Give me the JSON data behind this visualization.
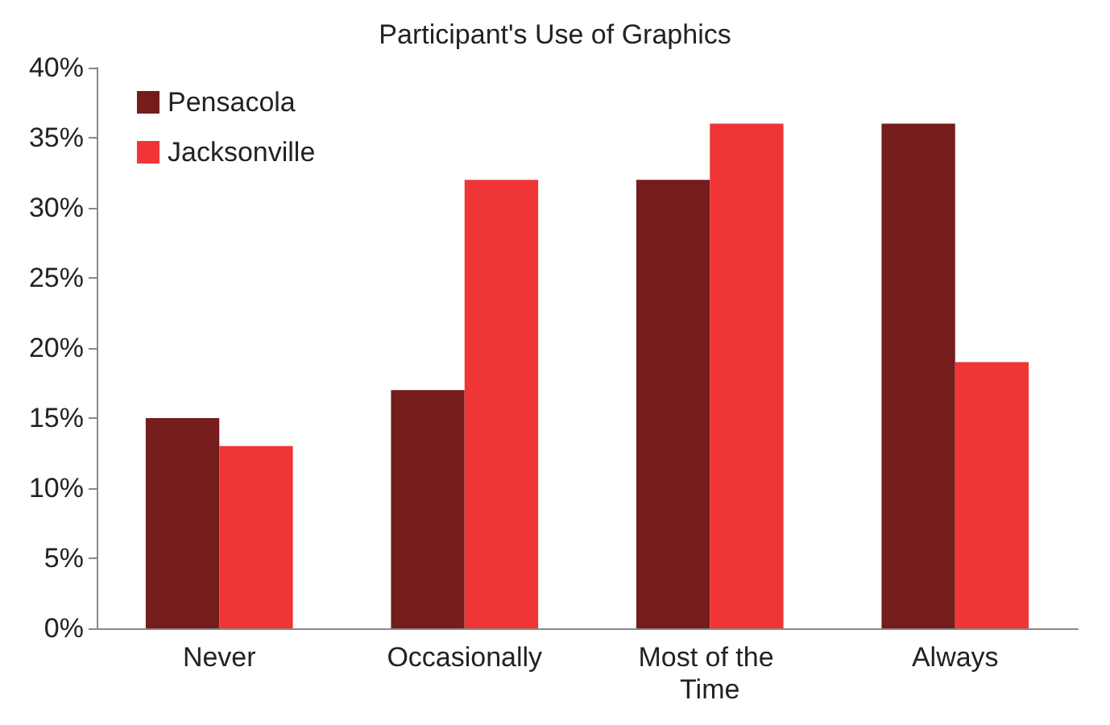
{
  "chart_data": {
    "type": "bar",
    "title": "Participant's Use of Graphics",
    "categories": [
      "Never",
      "Occasionally",
      "Most of the Time",
      "Always"
    ],
    "series": [
      {
        "name": "Pensacola",
        "color": "#751c1c",
        "values": [
          15,
          17,
          32,
          36
        ]
      },
      {
        "name": "Jacksonville",
        "color": "#ef3535",
        "values": [
          13,
          32,
          36,
          19
        ]
      }
    ],
    "ylim": [
      0,
      40
    ],
    "yticks": [
      {
        "value": 0,
        "label": "0%"
      },
      {
        "value": 5,
        "label": "5%"
      },
      {
        "value": 10,
        "label": "10%"
      },
      {
        "value": 15,
        "label": "15%"
      },
      {
        "value": 20,
        "label": "20%"
      },
      {
        "value": 25,
        "label": "25%"
      },
      {
        "value": 30,
        "label": "30%"
      },
      {
        "value": 35,
        "label": "35%"
      },
      {
        "value": 40,
        "label": "40%"
      }
    ],
    "grid": false,
    "legend": "top left"
  }
}
